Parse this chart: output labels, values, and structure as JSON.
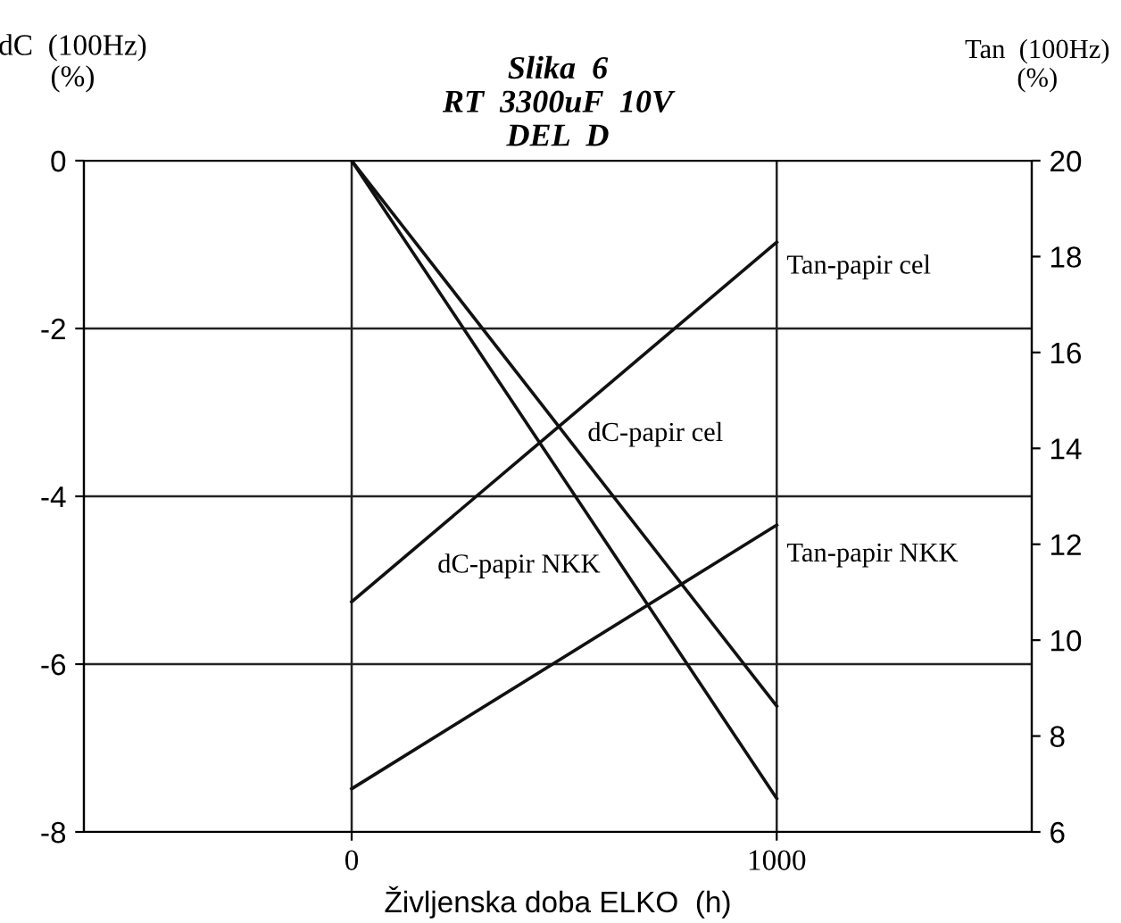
{
  "chart_data": {
    "type": "line",
    "title": "Slika  6\nRT  3300uF  10V\nDEL  D",
    "xlabel": "Življenska doba ELKO  (h)",
    "ylabel": "dC  (100Hz)\n(%)",
    "y2label": "Tan  (100Hz)\n(%)",
    "x": [
      0,
      1000
    ],
    "xlim": [
      -630,
      1600
    ],
    "xticks": [
      0,
      1000
    ],
    "ylim": [
      -8,
      0
    ],
    "yticks": [
      0,
      -2,
      -4,
      -6,
      -8
    ],
    "y2lim": [
      6,
      20
    ],
    "y2ticks": [
      6,
      8,
      10,
      12,
      14,
      16,
      18,
      20
    ],
    "grid": true,
    "legend": false,
    "marker": "none",
    "line_style": "solid",
    "series": [
      {
        "name": "dC-papir cel",
        "color": "#111111",
        "values": [
          0,
          -6.5
        ]
      },
      {
        "name": "dC-papir NKK",
        "color": "#111111",
        "values": [
          0,
          -7.6
        ]
      },
      {
        "name": "Tan-papir cel",
        "color": "#111111",
        "values": [
          10.8,
          18.3
        ],
        "axis": "y2"
      },
      {
        "name": "Tan-papir NKK",
        "color": "#111111",
        "values": [
          6.9,
          12.4
        ],
        "axis": "y2"
      }
    ]
  }
}
